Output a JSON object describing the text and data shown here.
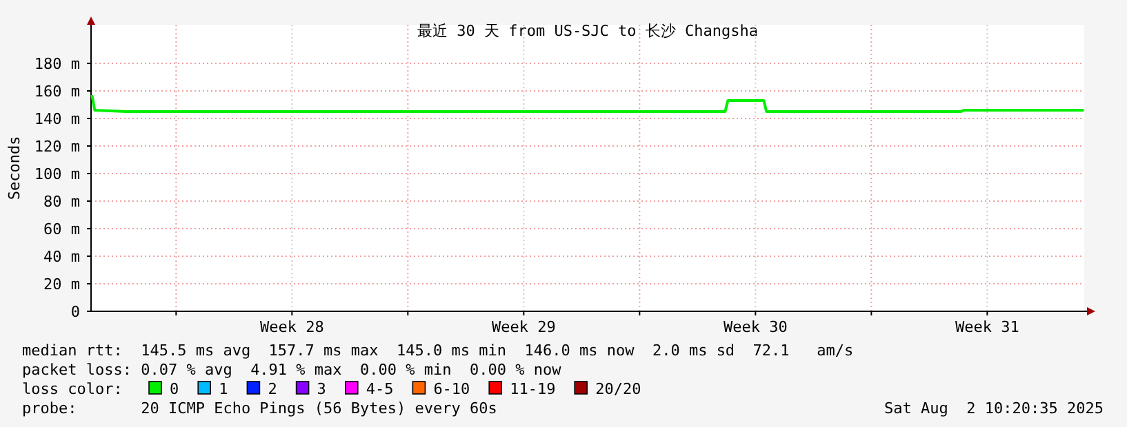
{
  "chart_data": {
    "type": "line",
    "title": "最近 30 天 from US-SJC to 长沙 Changsha",
    "ylabel": "Seconds",
    "x": [
      "2025-07-03T11:00",
      "2025-07-03T13:00",
      "2025-07-04T12:00",
      "2025-07-22T14:00",
      "2025-07-22T16:00",
      "2025-07-23T18:00",
      "2025-07-23T20:00",
      "2025-07-29T17:00",
      "2025-07-29T19:00",
      "2025-08-02T10:00"
    ],
    "series": [
      {
        "name": "0",
        "color": "#00ee00",
        "values": [
          157,
          146,
          145,
          145,
          153,
          153,
          145,
          145,
          146,
          146
        ]
      },
      {
        "name": "1",
        "color": "#00bbff",
        "values": [
          null,
          null,
          null,
          null,
          null,
          null,
          null,
          null,
          null,
          null
        ]
      },
      {
        "name": "2",
        "color": "#0022ff",
        "values": [
          null,
          null,
          null,
          null,
          null,
          null,
          null,
          null,
          null,
          null
        ]
      },
      {
        "name": "3",
        "color": "#8800ff",
        "values": [
          null,
          null,
          null,
          null,
          null,
          null,
          null,
          null,
          null,
          null
        ]
      },
      {
        "name": "4-5",
        "color": "#ff00ff",
        "values": [
          null,
          null,
          null,
          null,
          null,
          null,
          null,
          null,
          null,
          null
        ]
      },
      {
        "name": "6-10",
        "color": "#ff6600",
        "values": [
          null,
          null,
          null,
          null,
          null,
          null,
          null,
          null,
          null,
          null
        ]
      },
      {
        "name": "11-19",
        "color": "#ff0000",
        "values": [
          null,
          null,
          null,
          null,
          null,
          null,
          null,
          null,
          null,
          null
        ]
      },
      {
        "name": "20/20",
        "color": "#a10000",
        "values": [
          null,
          null,
          null,
          null,
          null,
          null,
          null,
          null,
          null,
          null
        ]
      }
    ],
    "legend": "bottom",
    "legend_title": "loss color:",
    "grid": true,
    "xlim": [
      "2025-07-03T10:20",
      "2025-08-02T10:20"
    ],
    "xticks": [
      {
        "value": "2025-07-06T00:00",
        "label": null
      },
      {
        "value": "2025-07-09T12:00",
        "label": "Week 28"
      },
      {
        "value": "2025-07-13T00:00",
        "label": null
      },
      {
        "value": "2025-07-16T12:00",
        "label": "Week 29"
      },
      {
        "value": "2025-07-20T00:00",
        "label": null
      },
      {
        "value": "2025-07-23T12:00",
        "label": "Week 30"
      },
      {
        "value": "2025-07-27T00:00",
        "label": null
      },
      {
        "value": "2025-07-30T12:00",
        "label": "Week 31"
      }
    ],
    "ylim": [
      0,
      208
    ],
    "yticks": [
      0,
      {
        "value": 20,
        "label": "20 m"
      },
      {
        "value": 40,
        "label": "40 m"
      },
      {
        "value": 60,
        "label": "60 m"
      },
      {
        "value": 80,
        "label": "80 m"
      },
      {
        "value": 100,
        "label": "100 m"
      },
      {
        "value": 120,
        "label": "120 m"
      },
      {
        "value": 140,
        "label": "140 m"
      },
      {
        "value": 160,
        "label": "160 m"
      },
      {
        "value": 180,
        "label": "180 m"
      }
    ],
    "annotations": [
      "median rtt:  145.5 ms avg  157.7 ms max  145.0 ms min  146.0 ms now  2.0 ms sd  72.1   am/s",
      "packet loss: 0.07 % avg  4.91 % max  0.00 % min  0.00 % now",
      "probe:       20 ICMP Echo Pings (56 Bytes) every 60s",
      "Sat Aug  2 10:20:35 2025"
    ]
  }
}
